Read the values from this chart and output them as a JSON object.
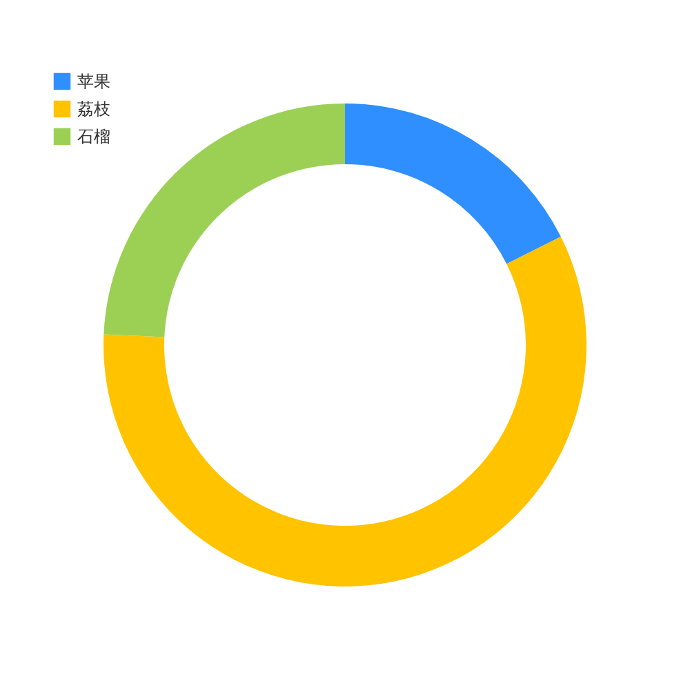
{
  "chart_data": {
    "type": "donut",
    "categories": [
      "苹果",
      "荔枝",
      "石榴"
    ],
    "values": [
      17.6,
      58.1,
      24.3
    ],
    "colors": [
      "#2f8fff",
      "#ffc300",
      "#9bd055"
    ],
    "legend": "top left"
  }
}
